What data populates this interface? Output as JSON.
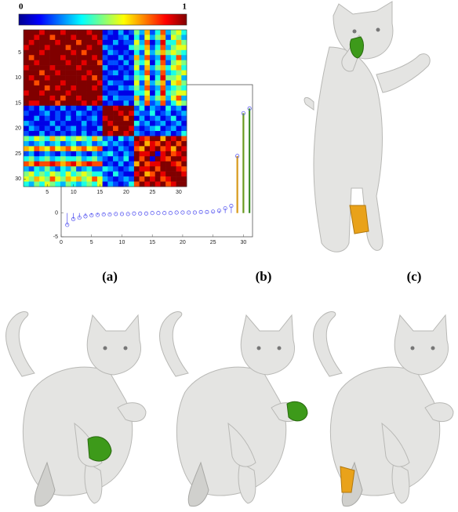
{
  "chart_data": [
    {
      "type": "heatmap",
      "zlim": [
        0,
        1
      ],
      "xticks": [
        5,
        10,
        15,
        20,
        25,
        30
      ],
      "yticks": [
        5,
        10,
        15,
        20,
        25,
        30
      ],
      "values": [
        [
          1,
          1,
          1,
          0.9,
          1,
          1,
          1,
          0.9,
          1,
          1,
          1,
          1,
          0.9,
          1,
          1,
          0.1,
          0.2,
          0.1,
          0.3,
          0.1,
          0.2,
          0.5,
          0.3,
          0.7,
          0.2,
          0.4,
          0.8,
          0.3,
          0.5,
          0.6,
          0.4
        ],
        [
          1,
          1,
          0.9,
          1,
          1,
          0.8,
          1,
          1,
          1,
          0.9,
          1,
          1,
          1,
          0.9,
          1,
          0.2,
          0.1,
          0.1,
          0.2,
          0.3,
          0.1,
          0.4,
          0.2,
          0.6,
          0.3,
          0.5,
          0.7,
          0.2,
          0.6,
          0.5,
          0.3
        ],
        [
          1,
          0.9,
          1,
          1,
          1,
          1,
          0.9,
          1,
          1,
          1,
          0.8,
          1,
          1,
          1,
          0.9,
          0.1,
          0.1,
          0.3,
          0.1,
          0.2,
          0.2,
          0.6,
          0.3,
          0.8,
          0.1,
          0.3,
          0.9,
          0.4,
          0.4,
          0.7,
          0.5
        ],
        [
          0.9,
          1,
          1,
          1,
          0.9,
          1,
          1,
          1,
          0.8,
          1,
          1,
          1,
          0.9,
          1,
          1,
          0.3,
          0.2,
          0.1,
          0.1,
          0.1,
          0.4,
          0.5,
          0.4,
          0.7,
          0.2,
          0.4,
          0.8,
          0.3,
          0.5,
          0.6,
          0.6
        ],
        [
          1,
          1,
          1,
          0.9,
          1,
          1,
          1,
          1,
          1,
          0.9,
          1,
          0.8,
          1,
          1,
          1,
          0.1,
          0.3,
          0.2,
          0.1,
          0.2,
          0.1,
          0.4,
          0.2,
          0.6,
          0.3,
          0.5,
          0.7,
          0.5,
          0.6,
          0.5,
          0.4
        ],
        [
          1,
          0.8,
          1,
          1,
          1,
          1,
          1,
          0.9,
          1,
          1,
          1,
          1,
          1,
          0.9,
          1,
          0.2,
          0.1,
          0.1,
          0.3,
          0.1,
          0.2,
          0.7,
          0.3,
          0.8,
          0.2,
          0.3,
          0.9,
          0.3,
          0.4,
          0.8,
          0.3
        ],
        [
          1,
          1,
          0.9,
          1,
          1,
          1,
          1,
          1,
          0.9,
          1,
          1,
          0.9,
          1,
          1,
          0.8,
          0.1,
          0.2,
          0.2,
          0.1,
          0.3,
          0.1,
          0.5,
          0.4,
          0.6,
          0.1,
          0.4,
          0.8,
          0.2,
          0.5,
          0.6,
          0.5
        ],
        [
          0.9,
          1,
          1,
          1,
          1,
          0.9,
          1,
          1,
          1,
          1,
          0.9,
          1,
          1,
          1,
          1,
          0.3,
          0.1,
          0.1,
          0.2,
          0.1,
          0.2,
          0.6,
          0.2,
          0.7,
          0.3,
          0.5,
          0.7,
          0.4,
          0.6,
          0.7,
          0.4
        ],
        [
          1,
          1,
          1,
          0.8,
          1,
          1,
          0.9,
          1,
          1,
          1,
          1,
          1,
          0.9,
          1,
          1,
          0.1,
          0.2,
          0.3,
          0.1,
          0.2,
          0.1,
          0.4,
          0.3,
          0.8,
          0.2,
          0.3,
          0.8,
          0.3,
          0.4,
          0.5,
          0.6
        ],
        [
          1,
          0.9,
          1,
          1,
          0.9,
          1,
          1,
          1,
          1,
          1,
          1,
          0.9,
          1,
          0.8,
          1,
          0.2,
          0.1,
          0.1,
          0.1,
          0.3,
          0.2,
          0.5,
          0.4,
          0.6,
          0.1,
          0.4,
          0.9,
          0.5,
          0.5,
          0.6,
          0.3
        ],
        [
          1,
          1,
          0.8,
          1,
          1,
          1,
          1,
          0.9,
          1,
          1,
          1,
          1,
          1,
          1,
          0.9,
          0.1,
          0.3,
          0.2,
          0.2,
          0.1,
          0.1,
          0.6,
          0.2,
          0.7,
          0.3,
          0.5,
          0.7,
          0.2,
          0.6,
          0.7,
          0.5
        ],
        [
          1,
          1,
          1,
          1,
          0.8,
          1,
          0.9,
          1,
          1,
          0.9,
          1,
          1,
          1,
          0.9,
          1,
          0.2,
          0.1,
          0.1,
          0.3,
          0.2,
          0.3,
          0.5,
          0.3,
          0.8,
          0.2,
          0.3,
          0.8,
          0.3,
          0.4,
          0.5,
          0.4
        ],
        [
          0.9,
          1,
          1,
          0.9,
          1,
          1,
          1,
          1,
          0.9,
          1,
          1,
          1,
          1,
          1,
          1,
          0.1,
          0.2,
          0.2,
          0.1,
          0.1,
          0.1,
          0.4,
          0.4,
          0.6,
          0.1,
          0.4,
          0.9,
          0.4,
          0.5,
          0.6,
          0.6
        ],
        [
          1,
          1,
          1,
          1,
          1,
          0.9,
          1,
          0.8,
          1,
          1,
          0.9,
          1,
          1,
          1,
          0.9,
          0.3,
          0.1,
          0.3,
          0.2,
          0.2,
          0.2,
          0.7,
          0.2,
          0.7,
          0.3,
          0.5,
          0.7,
          0.3,
          0.6,
          0.8,
          0.3
        ],
        [
          1,
          0.9,
          0.9,
          1,
          1,
          1,
          0.8,
          1,
          1,
          1,
          1,
          0.9,
          1,
          0.9,
          1,
          0.1,
          0.2,
          0.1,
          0.1,
          0.3,
          0.1,
          0.5,
          0.3,
          0.8,
          0.2,
          0.3,
          0.8,
          0.2,
          0.4,
          0.6,
          0.5
        ],
        [
          0.1,
          0.2,
          0.1,
          0.3,
          0.1,
          0.2,
          0.1,
          0.3,
          0.1,
          0.2,
          0.1,
          0.1,
          0.3,
          0.1,
          0.2,
          1,
          1,
          0.9,
          1,
          1,
          1,
          0.2,
          0.4,
          0.1,
          0.3,
          0.2,
          0.1,
          0.4,
          0.2,
          0.3,
          0.1
        ],
        [
          0.2,
          0.1,
          0.1,
          0.2,
          0.3,
          0.1,
          0.2,
          0.1,
          0.2,
          0.1,
          0.3,
          0.2,
          0.1,
          0.2,
          0.1,
          1,
          1,
          1,
          0.9,
          1,
          0.9,
          0.3,
          0.2,
          0.2,
          0.4,
          0.1,
          0.2,
          0.3,
          0.1,
          0.2,
          0.3
        ],
        [
          0.1,
          0.1,
          0.3,
          0.1,
          0.2,
          0.1,
          0.2,
          0.1,
          0.3,
          0.1,
          0.2,
          0.1,
          0.2,
          0.3,
          0.1,
          0.9,
          1,
          1,
          1,
          0.8,
          1,
          0.1,
          0.3,
          0.1,
          0.2,
          0.3,
          0.1,
          0.2,
          0.4,
          0.1,
          0.2
        ],
        [
          0.3,
          0.2,
          0.1,
          0.1,
          0.1,
          0.3,
          0.1,
          0.2,
          0.1,
          0.1,
          0.1,
          0.3,
          0.1,
          0.2,
          0.1,
          1,
          0.9,
          1,
          1,
          1,
          1,
          0.4,
          0.2,
          0.3,
          0.1,
          0.2,
          0.3,
          0.1,
          0.2,
          0.3,
          0.1
        ],
        [
          0.1,
          0.3,
          0.2,
          0.1,
          0.2,
          0.1,
          0.3,
          0.1,
          0.2,
          0.3,
          0.1,
          0.2,
          0.1,
          0.1,
          0.3,
          1,
          1,
          0.8,
          1,
          1,
          0.9,
          0.2,
          0.1,
          0.2,
          0.3,
          0.4,
          0.1,
          0.2,
          0.3,
          0.1,
          0.2
        ],
        [
          0.2,
          0.1,
          0.1,
          0.3,
          0.1,
          0.2,
          0.1,
          0.2,
          0.1,
          0.2,
          0.1,
          0.3,
          0.1,
          0.2,
          0.1,
          1,
          0.9,
          1,
          1,
          0.9,
          1,
          0.3,
          0.2,
          0.1,
          0.2,
          0.1,
          0.2,
          0.3,
          0.1,
          0.2,
          0.4
        ],
        [
          0.5,
          0.4,
          0.6,
          0.5,
          0.4,
          0.7,
          0.5,
          0.6,
          0.4,
          0.5,
          0.6,
          0.5,
          0.4,
          0.7,
          0.5,
          0.2,
          0.3,
          0.1,
          0.4,
          0.2,
          0.3,
          1,
          0.9,
          0.8,
          1,
          1,
          0.7,
          1,
          0.9,
          1,
          0.8
        ],
        [
          0.3,
          0.2,
          0.3,
          0.4,
          0.2,
          0.3,
          0.4,
          0.2,
          0.3,
          0.4,
          0.2,
          0.3,
          0.4,
          0.2,
          0.3,
          0.4,
          0.2,
          0.3,
          0.2,
          0.1,
          0.2,
          0.9,
          1,
          0.7,
          0.9,
          0.8,
          1,
          0.9,
          1,
          0.8,
          1
        ],
        [
          0.7,
          0.6,
          0.8,
          0.7,
          0.6,
          0.8,
          0.6,
          0.7,
          0.8,
          0.6,
          0.7,
          0.8,
          0.6,
          0.7,
          0.8,
          0.1,
          0.2,
          0.1,
          0.3,
          0.2,
          0.1,
          0.8,
          0.7,
          1,
          0.9,
          1,
          0.8,
          0.9,
          0.7,
          1,
          0.9
        ],
        [
          0.2,
          0.3,
          0.1,
          0.2,
          0.3,
          0.2,
          0.1,
          0.3,
          0.2,
          0.1,
          0.3,
          0.2,
          0.1,
          0.3,
          0.2,
          0.3,
          0.4,
          0.2,
          0.1,
          0.3,
          0.2,
          1,
          0.9,
          0.9,
          1,
          0.1,
          0.9,
          1,
          0.8,
          0.9,
          1
        ],
        [
          0.4,
          0.5,
          0.3,
          0.4,
          0.5,
          0.3,
          0.4,
          0.5,
          0.4,
          0.4,
          0.5,
          0.3,
          0.4,
          0.5,
          0.3,
          0.2,
          0.1,
          0.3,
          0.2,
          0.4,
          0.1,
          1,
          0.8,
          1,
          0.1,
          1,
          0.9,
          0.8,
          1,
          1,
          0.9
        ],
        [
          0.8,
          0.7,
          0.9,
          0.8,
          0.8,
          0.9,
          0.8,
          0.7,
          0.8,
          0.9,
          0.7,
          0.8,
          0.9,
          0.8,
          0.8,
          0.1,
          0.2,
          0.1,
          0.3,
          0.1,
          0.2,
          0.7,
          1,
          0.8,
          0.9,
          0.9,
          1,
          1,
          0.9,
          0.8,
          1
        ],
        [
          0.3,
          0.2,
          0.4,
          0.3,
          0.5,
          0.3,
          0.2,
          0.4,
          0.3,
          0.5,
          0.2,
          0.3,
          0.4,
          0.2,
          0.2,
          0.4,
          0.3,
          0.2,
          0.1,
          0.2,
          0.3,
          1,
          0.9,
          0.9,
          1,
          0.8,
          1,
          1,
          1,
          0.9,
          0.8
        ],
        [
          0.5,
          0.6,
          0.4,
          0.5,
          0.4,
          0.6,
          0.5,
          0.4,
          0.6,
          0.4,
          0.5,
          0.6,
          0.5,
          0.4,
          0.4,
          0.2,
          0.1,
          0.4,
          0.2,
          0.1,
          0.1,
          0.9,
          1,
          0.7,
          0.8,
          1,
          0.9,
          1,
          1,
          1,
          0.9
        ],
        [
          0.6,
          0.5,
          0.7,
          0.6,
          0.5,
          0.8,
          0.6,
          0.5,
          0.7,
          0.6,
          0.7,
          0.5,
          0.6,
          0.8,
          0.6,
          0.3,
          0.2,
          0.1,
          0.2,
          0.3,
          0.2,
          1,
          0.8,
          1,
          0.9,
          1,
          0.8,
          0.9,
          1,
          1,
          1
        ],
        [
          0.4,
          0.3,
          0.5,
          0.4,
          0.6,
          0.5,
          0.4,
          0.3,
          0.5,
          0.4,
          0.3,
          0.4,
          0.5,
          0.4,
          0.6,
          0.1,
          0.3,
          0.2,
          0.1,
          0.2,
          0.4,
          0.8,
          1,
          0.9,
          1,
          0.9,
          1,
          0.8,
          0.9,
          1,
          1
        ]
      ]
    },
    {
      "type": "stem",
      "xlim": [
        0,
        31.5
      ],
      "ylim": [
        -5,
        27
      ],
      "xticks": [
        0,
        5,
        10,
        15,
        20,
        25,
        30
      ],
      "yticks": [
        -5,
        0
      ],
      "x": [
        1,
        2,
        3,
        4,
        5,
        6,
        7,
        8,
        9,
        10,
        11,
        12,
        13,
        14,
        15,
        16,
        17,
        18,
        19,
        20,
        21,
        22,
        23,
        24,
        25,
        26,
        27,
        28,
        29,
        30,
        31
      ],
      "values": [
        -2.5,
        -1.3,
        -1,
        -0.7,
        -0.5,
        -0.4,
        -0.3,
        -0.3,
        -0.2,
        -0.2,
        -0.2,
        -0.1,
        -0.1,
        -0.1,
        0,
        0,
        0,
        0,
        0.1,
        0.1,
        0.1,
        0.1,
        0.2,
        0.2,
        0.3,
        0.5,
        1,
        1.5,
        12,
        21,
        22
      ],
      "color": "#4a4af0",
      "highlight_colors": [
        "#d89a1a",
        "#6a9a20",
        "#3f8f2a"
      ]
    }
  ],
  "panels": [
    "(a)",
    "(b)",
    "(c)"
  ]
}
